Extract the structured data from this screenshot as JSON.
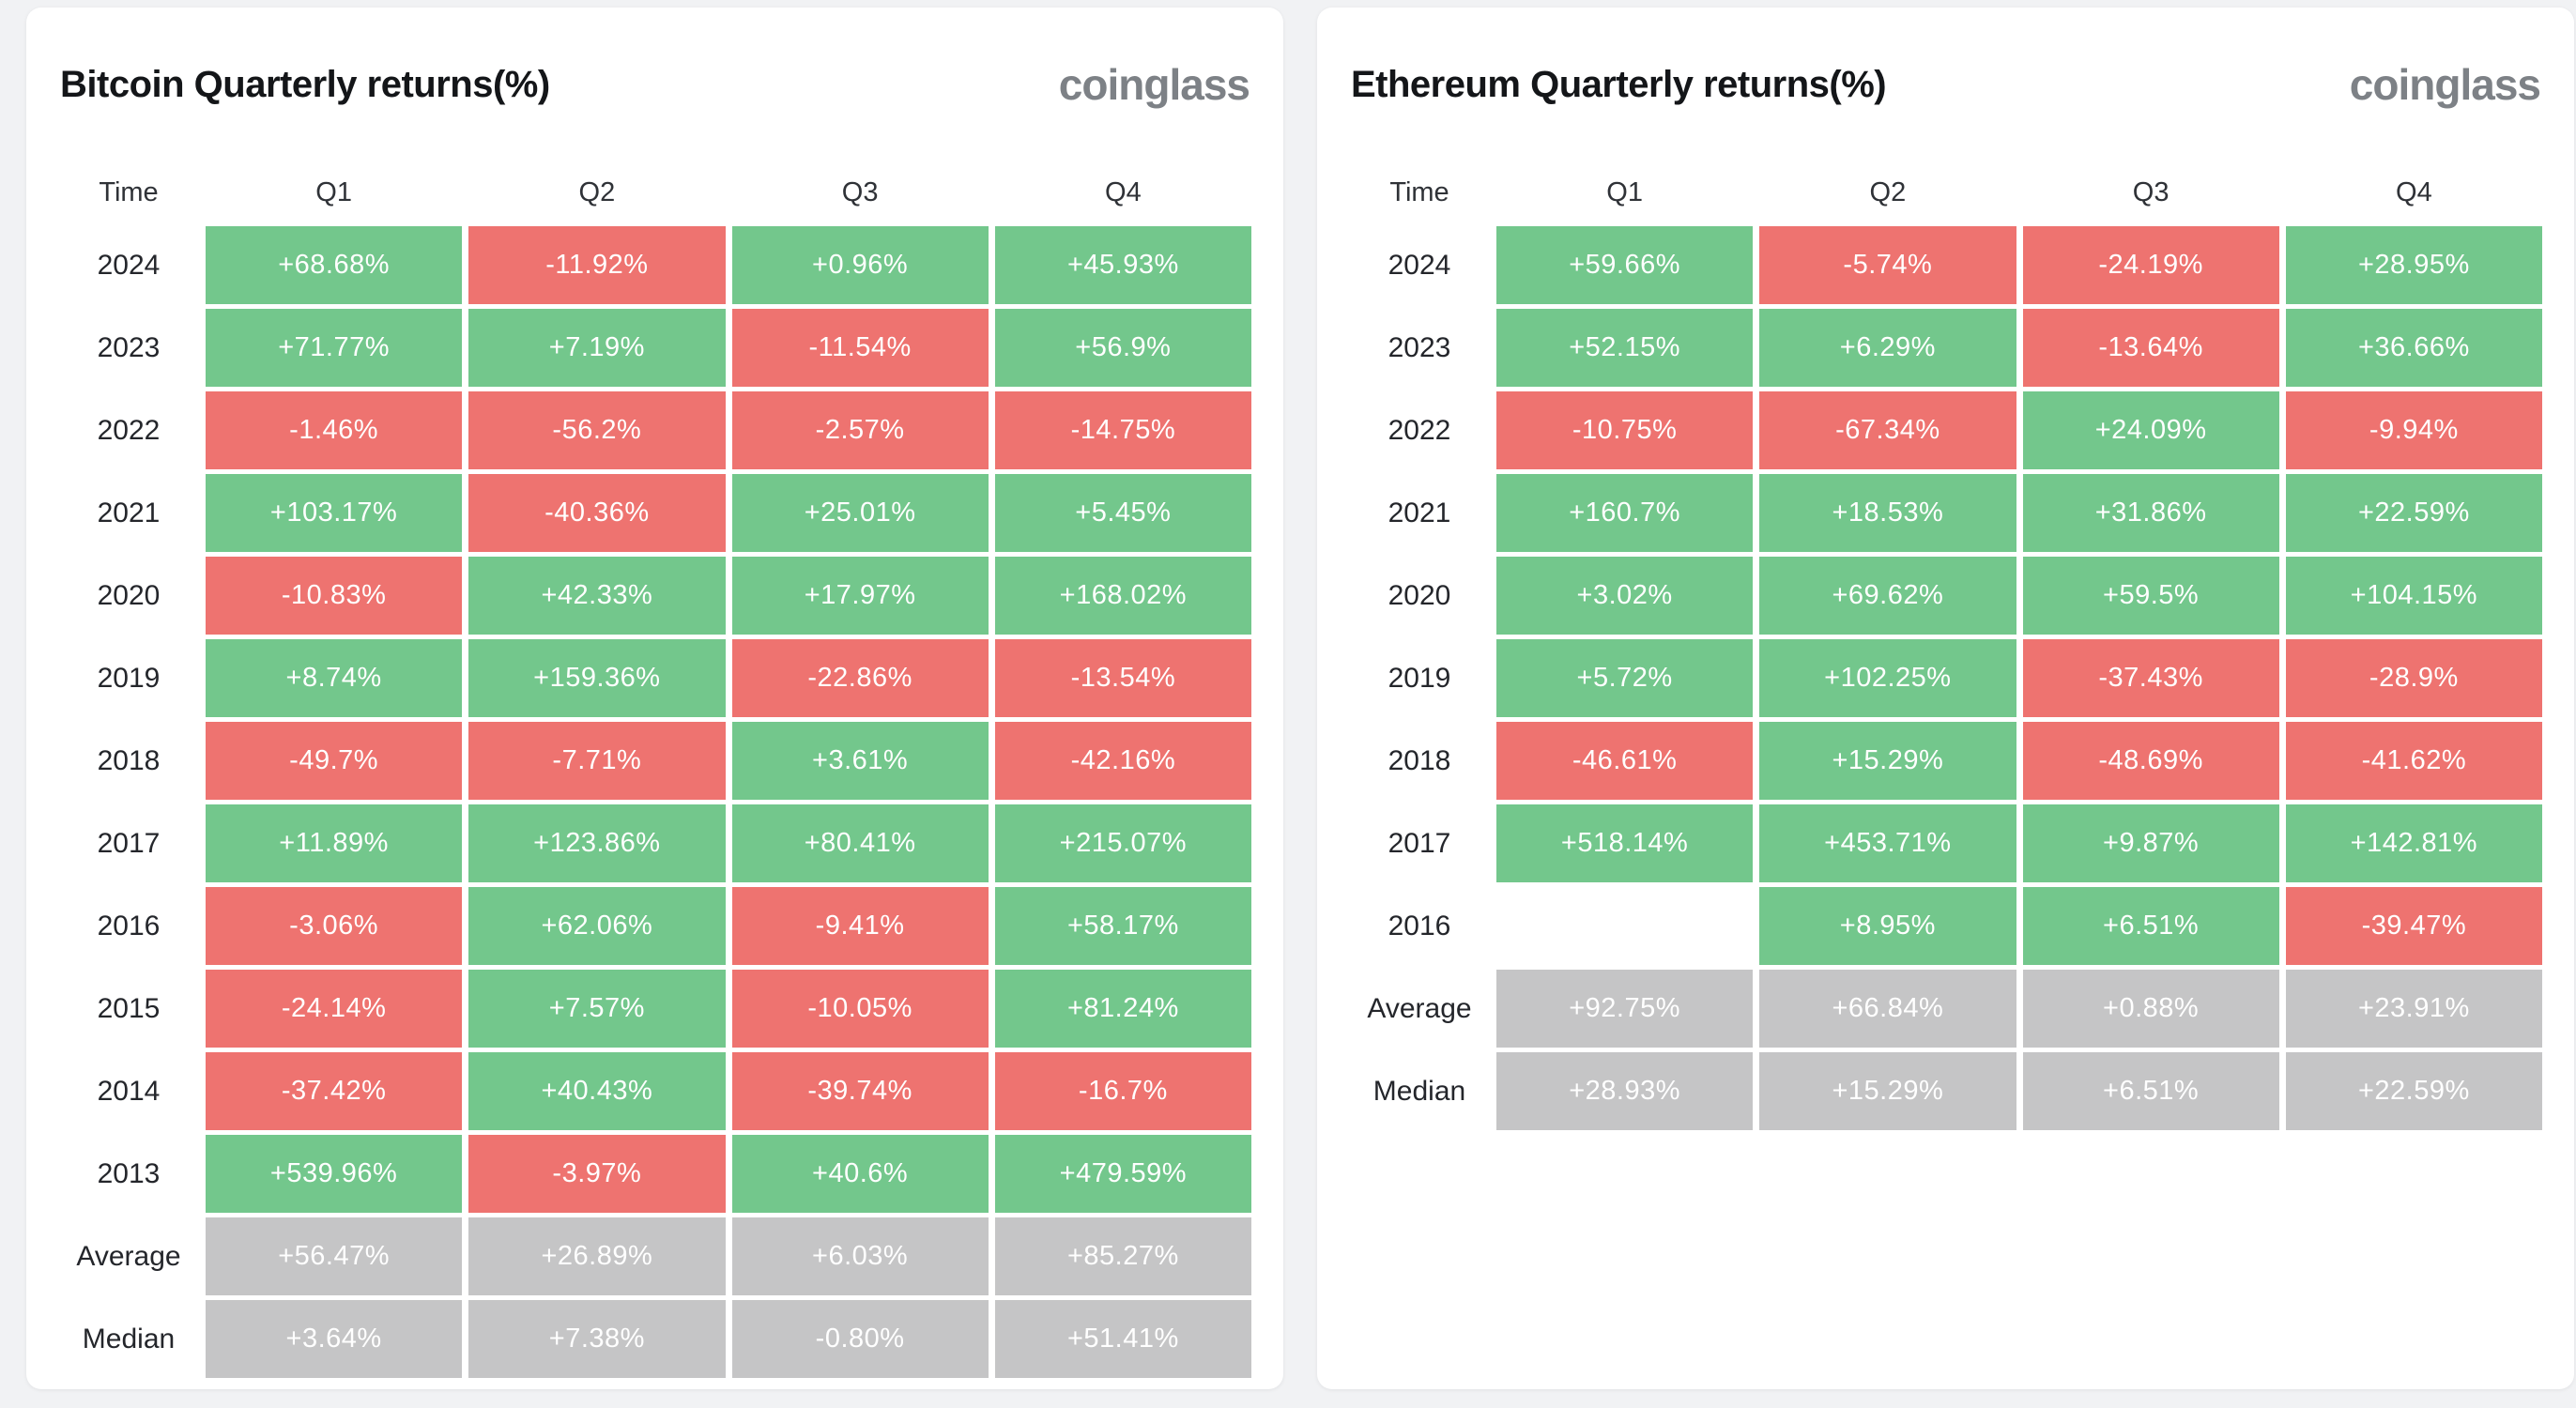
{
  "page": {
    "background_color": "#f1f2f4"
  },
  "branding": {
    "logo_text": "coinglass",
    "logo_color": "#7d8186"
  },
  "colors": {
    "positive": "#73c78c",
    "negative": "#ee7370",
    "neutral": "#c5c5c6",
    "value_text": "#ffffff",
    "label_text": "#24262b",
    "header_text": "#2f3237",
    "title_text": "#141619"
  },
  "chart_data": [
    {
      "type": "table",
      "title": "Bitcoin Quarterly returns(%)",
      "columns": [
        "Time",
        "Q1",
        "Q2",
        "Q3",
        "Q4"
      ],
      "rows": [
        {
          "label": "2024",
          "kind": "year",
          "values": [
            "+68.68%",
            "-11.92%",
            "+0.96%",
            "+45.93%"
          ]
        },
        {
          "label": "2023",
          "kind": "year",
          "values": [
            "+71.77%",
            "+7.19%",
            "-11.54%",
            "+56.9%"
          ]
        },
        {
          "label": "2022",
          "kind": "year",
          "values": [
            "-1.46%",
            "-56.2%",
            "-2.57%",
            "-14.75%"
          ]
        },
        {
          "label": "2021",
          "kind": "year",
          "values": [
            "+103.17%",
            "-40.36%",
            "+25.01%",
            "+5.45%"
          ]
        },
        {
          "label": "2020",
          "kind": "year",
          "values": [
            "-10.83%",
            "+42.33%",
            "+17.97%",
            "+168.02%"
          ]
        },
        {
          "label": "2019",
          "kind": "year",
          "values": [
            "+8.74%",
            "+159.36%",
            "-22.86%",
            "-13.54%"
          ]
        },
        {
          "label": "2018",
          "kind": "year",
          "values": [
            "-49.7%",
            "-7.71%",
            "+3.61%",
            "-42.16%"
          ]
        },
        {
          "label": "2017",
          "kind": "year",
          "values": [
            "+11.89%",
            "+123.86%",
            "+80.41%",
            "+215.07%"
          ]
        },
        {
          "label": "2016",
          "kind": "year",
          "values": [
            "-3.06%",
            "+62.06%",
            "-9.41%",
            "+58.17%"
          ]
        },
        {
          "label": "2015",
          "kind": "year",
          "values": [
            "-24.14%",
            "+7.57%",
            "-10.05%",
            "+81.24%"
          ]
        },
        {
          "label": "2014",
          "kind": "year",
          "values": [
            "-37.42%",
            "+40.43%",
            "-39.74%",
            "-16.7%"
          ]
        },
        {
          "label": "2013",
          "kind": "year",
          "values": [
            "+539.96%",
            "-3.97%",
            "+40.6%",
            "+479.59%"
          ]
        },
        {
          "label": "Average",
          "kind": "stat",
          "values": [
            "+56.47%",
            "+26.89%",
            "+6.03%",
            "+85.27%"
          ]
        },
        {
          "label": "Median",
          "kind": "stat",
          "values": [
            "+3.64%",
            "+7.38%",
            "-0.80%",
            "+51.41%"
          ]
        }
      ]
    },
    {
      "type": "table",
      "title": "Ethereum Quarterly returns(%)",
      "columns": [
        "Time",
        "Q1",
        "Q2",
        "Q3",
        "Q4"
      ],
      "rows": [
        {
          "label": "2024",
          "kind": "year",
          "values": [
            "+59.66%",
            "-5.74%",
            "-24.19%",
            "+28.95%"
          ]
        },
        {
          "label": "2023",
          "kind": "year",
          "values": [
            "+52.15%",
            "+6.29%",
            "-13.64%",
            "+36.66%"
          ]
        },
        {
          "label": "2022",
          "kind": "year",
          "values": [
            "-10.75%",
            "-67.34%",
            "+24.09%",
            "-9.94%"
          ]
        },
        {
          "label": "2021",
          "kind": "year",
          "values": [
            "+160.7%",
            "+18.53%",
            "+31.86%",
            "+22.59%"
          ]
        },
        {
          "label": "2020",
          "kind": "year",
          "values": [
            "+3.02%",
            "+69.62%",
            "+59.5%",
            "+104.15%"
          ]
        },
        {
          "label": "2019",
          "kind": "year",
          "values": [
            "+5.72%",
            "+102.25%",
            "-37.43%",
            "-28.9%"
          ]
        },
        {
          "label": "2018",
          "kind": "year",
          "values": [
            "-46.61%",
            "+15.29%",
            "-48.69%",
            "-41.62%"
          ]
        },
        {
          "label": "2017",
          "kind": "year",
          "values": [
            "+518.14%",
            "+453.71%",
            "+9.87%",
            "+142.81%"
          ]
        },
        {
          "label": "2016",
          "kind": "year",
          "values": [
            null,
            "+8.95%",
            "+6.51%",
            "-39.47%"
          ]
        },
        {
          "label": "Average",
          "kind": "stat",
          "values": [
            "+92.75%",
            "+66.84%",
            "+0.88%",
            "+23.91%"
          ]
        },
        {
          "label": "Median",
          "kind": "stat",
          "values": [
            "+28.93%",
            "+15.29%",
            "+6.51%",
            "+22.59%"
          ]
        }
      ]
    }
  ]
}
